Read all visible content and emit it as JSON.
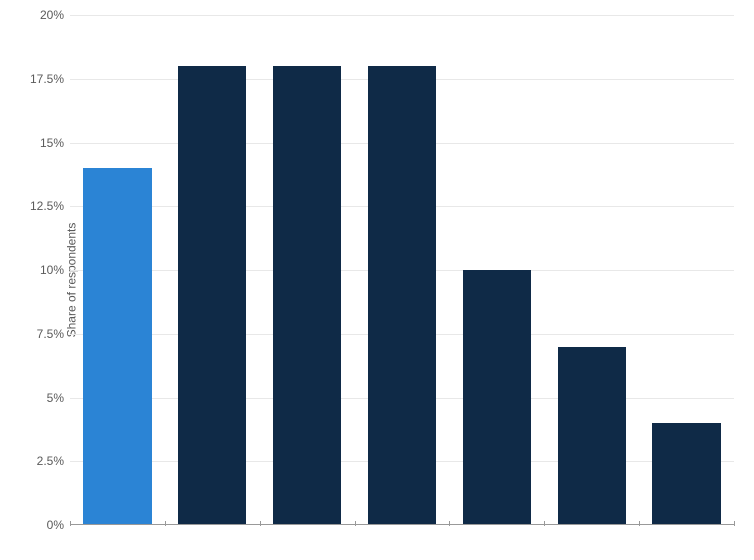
{
  "chart": {
    "type": "bar",
    "y_axis_label": "Share of respondents",
    "background_color": "#ffffff",
    "grid_color": "#e8e8e8",
    "axis_color": "#999999",
    "tick_label_color": "#5a5a5a",
    "tick_label_fontsize": 12,
    "ylim_min": 0,
    "ylim_max": 20,
    "ytick_step": 2.5,
    "ytick_labels": [
      "0%",
      "2.5%",
      "5%",
      "7.5%",
      "10%",
      "12.5%",
      "15%",
      "17.5%",
      "20%"
    ],
    "bar_width_ratio": 0.72,
    "values": [
      14,
      18,
      18,
      18,
      10,
      7,
      4
    ],
    "bar_colors": [
      "#2b84d5",
      "#0f2a47",
      "#0f2a47",
      "#0f2a47",
      "#0f2a47",
      "#0f2a47",
      "#0f2a47"
    ]
  }
}
